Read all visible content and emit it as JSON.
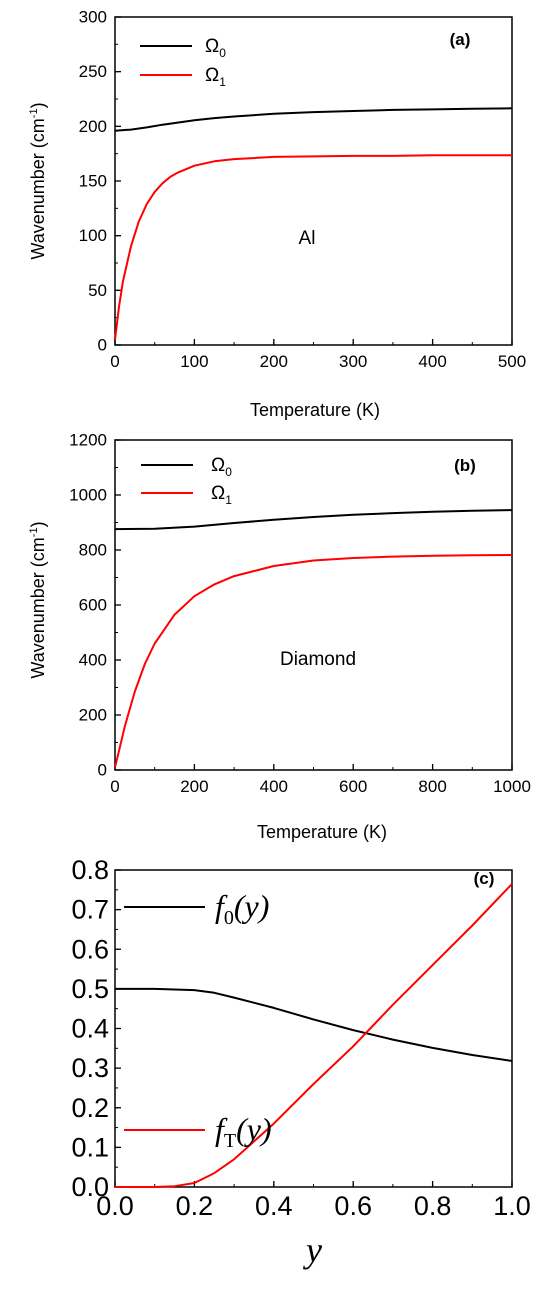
{
  "chart_data": [
    {
      "panel": "(a)",
      "type": "line",
      "xlabel": "Temperature (K)",
      "ylabel": "Wavenumber (cm",
      "ylabel_sup": "-1",
      "ylabel_end": ")",
      "xlim": [
        0,
        500
      ],
      "ylim": [
        0,
        300
      ],
      "xticks": [
        0,
        100,
        200,
        300,
        400,
        500
      ],
      "yticks": [
        0,
        50,
        100,
        150,
        200,
        250,
        300
      ],
      "annotation": "Al",
      "legend_position": "top-left",
      "series": [
        {
          "name": "Ω",
          "sub": "0",
          "color": "#000000",
          "x": [
            0,
            20,
            40,
            60,
            80,
            100,
            125,
            150,
            200,
            250,
            300,
            350,
            400,
            450,
            500
          ],
          "y": [
            196,
            197,
            199,
            201.5,
            203.5,
            205.5,
            207.5,
            209,
            211.5,
            213,
            214,
            215,
            215.5,
            216,
            216.5
          ]
        },
        {
          "name": "Ω",
          "sub": "1",
          "color": "#ff0000",
          "x": [
            0,
            5,
            10,
            20,
            30,
            40,
            50,
            60,
            70,
            80,
            100,
            125,
            150,
            200,
            250,
            300,
            350,
            400,
            450,
            500
          ],
          "y": [
            5,
            35,
            58,
            90,
            113,
            129,
            140,
            148,
            154,
            158,
            164,
            168,
            170,
            172,
            172.5,
            173,
            173,
            173.5,
            173.5,
            173.5
          ]
        }
      ]
    },
    {
      "panel": "(b)",
      "type": "line",
      "xlabel": "Temperature (K)",
      "ylabel": "Wavenumber (cm",
      "ylabel_sup": "-1",
      "ylabel_end": ")",
      "xlim": [
        0,
        1000
      ],
      "ylim": [
        0,
        1200
      ],
      "xticks": [
        0,
        200,
        400,
        600,
        800,
        1000
      ],
      "yticks": [
        0,
        200,
        400,
        600,
        800,
        1000,
        1200
      ],
      "annotation": "Diamond",
      "legend_position": "top-left",
      "series": [
        {
          "name": "Ω",
          "sub": "0",
          "color": "#000000",
          "x": [
            0,
            100,
            200,
            300,
            400,
            500,
            600,
            700,
            800,
            900,
            1000
          ],
          "y": [
            876,
            877,
            885,
            898,
            910,
            920,
            928,
            934,
            939,
            943,
            945
          ]
        },
        {
          "name": "Ω",
          "sub": "1",
          "color": "#ff0000",
          "x": [
            0,
            10,
            25,
            50,
            75,
            100,
            150,
            200,
            250,
            300,
            400,
            500,
            600,
            700,
            800,
            900,
            1000
          ],
          "y": [
            10,
            70,
            160,
            285,
            385,
            460,
            565,
            632,
            675,
            705,
            742,
            762,
            771,
            776,
            779,
            781,
            782
          ]
        }
      ]
    },
    {
      "panel": "(c)",
      "type": "line",
      "xlabel": "y",
      "xlim": [
        0,
        1.0
      ],
      "ylim": [
        0,
        0.8
      ],
      "xticks": [
        "0.0",
        "0.2",
        "0.4",
        "0.6",
        "0.8",
        "1.0"
      ],
      "yticks": [
        "0.0",
        "0.1",
        "0.2",
        "0.3",
        "0.4",
        "0.5",
        "0.6",
        "0.7",
        "0.8"
      ],
      "legend_position": "left",
      "series": [
        {
          "name": "f",
          "sub": "0",
          "arg": "(y)",
          "color": "#000000",
          "x": [
            0,
            0.1,
            0.2,
            0.25,
            0.3,
            0.4,
            0.5,
            0.6,
            0.7,
            0.8,
            0.9,
            1.0
          ],
          "y": [
            0.5,
            0.5,
            0.497,
            0.49,
            0.478,
            0.452,
            0.423,
            0.396,
            0.372,
            0.351,
            0.333,
            0.318
          ]
        },
        {
          "name": "f",
          "sub": "T",
          "arg": "(y)",
          "color": "#ff0000",
          "x": [
            0,
            0.1,
            0.15,
            0.2,
            0.25,
            0.3,
            0.4,
            0.5,
            0.6,
            0.7,
            0.8,
            0.9,
            1.0
          ],
          "y": [
            0,
            0,
            0.002,
            0.01,
            0.035,
            0.07,
            0.16,
            0.26,
            0.355,
            0.46,
            0.56,
            0.66,
            0.765
          ]
        }
      ]
    }
  ]
}
